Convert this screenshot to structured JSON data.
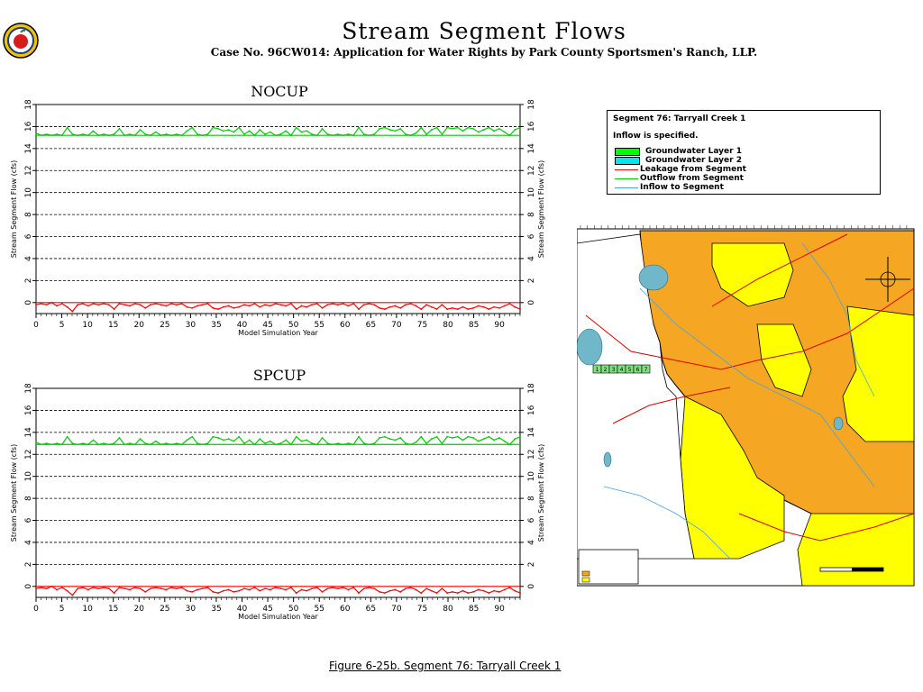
{
  "header": {
    "title": "Stream Segment Flows",
    "subtitle": "Case No. 96CW014: Application for Water Rights by Park County Sportsmen's Ranch, LLP."
  },
  "chart_data": [
    {
      "type": "line",
      "title": "NOCUP",
      "xlabel": "Model Simulation Year",
      "ylabel": "Stream Segment Flow (cfs)",
      "xlim": [
        0,
        94
      ],
      "ylim": [
        -1,
        18
      ],
      "x_ticks": [
        0,
        5,
        10,
        15,
        20,
        25,
        30,
        35,
        40,
        45,
        50,
        55,
        60,
        65,
        70,
        75,
        80,
        85,
        90
      ],
      "y_ticks": [
        0,
        2,
        4,
        6,
        8,
        10,
        12,
        14,
        16,
        18
      ],
      "grid": "horizontal dashed",
      "series": [
        {
          "name": "Outflow from Segment",
          "color": "#00cc00",
          "base": 15.2,
          "values": [
            15.4,
            15.2,
            15.3,
            15.2,
            15.3,
            15.2,
            15.9,
            15.3,
            15.2,
            15.3,
            15.2,
            15.6,
            15.2,
            15.3,
            15.2,
            15.3,
            15.8,
            15.2,
            15.3,
            15.2,
            15.7,
            15.3,
            15.2,
            15.5,
            15.2,
            15.3,
            15.2,
            15.3,
            15.2,
            15.6,
            15.9,
            15.3,
            15.2,
            15.3,
            15.9,
            15.8,
            15.6,
            15.7,
            15.5,
            15.9,
            15.3,
            15.6,
            15.2,
            15.7,
            15.3,
            15.5,
            15.2,
            15.3,
            15.6,
            15.2,
            15.9,
            15.5,
            15.6,
            15.3,
            15.2,
            15.8,
            15.3,
            15.2,
            15.3,
            15.2,
            15.3,
            15.2,
            15.9,
            15.3,
            15.2,
            15.3,
            15.8,
            15.9,
            15.7,
            15.6,
            15.8,
            15.3,
            15.2,
            15.4,
            15.9,
            15.3,
            15.7,
            15.9,
            15.3,
            15.9,
            15.8,
            15.9,
            15.6,
            15.9,
            15.8,
            15.5,
            15.7,
            15.9,
            15.6,
            15.8,
            15.5,
            15.2,
            15.7,
            15.9
          ]
        },
        {
          "name": "Leakage from Segment",
          "color": "#ff0000",
          "base": 0.0,
          "values": [
            -0.2,
            -0.1,
            -0.2,
            0.0,
            -0.3,
            -0.1,
            -0.4,
            -0.8,
            -0.2,
            -0.1,
            -0.3,
            -0.1,
            -0.2,
            -0.1,
            -0.2,
            -0.6,
            -0.1,
            -0.2,
            -0.3,
            -0.1,
            -0.2,
            -0.5,
            -0.2,
            -0.1,
            -0.2,
            -0.3,
            -0.1,
            -0.2,
            -0.1,
            -0.4,
            -0.5,
            -0.3,
            -0.2,
            -0.1,
            -0.5,
            -0.6,
            -0.4,
            -0.3,
            -0.5,
            -0.4,
            -0.2,
            -0.3,
            -0.1,
            -0.4,
            -0.2,
            -0.3,
            -0.1,
            -0.2,
            -0.3,
            -0.1,
            -0.6,
            -0.3,
            -0.4,
            -0.2,
            -0.1,
            -0.5,
            -0.2,
            -0.1,
            -0.2,
            -0.1,
            -0.3,
            -0.1,
            -0.6,
            -0.2,
            -0.1,
            -0.2,
            -0.5,
            -0.6,
            -0.4,
            -0.3,
            -0.5,
            -0.2,
            -0.1,
            -0.3,
            -0.6,
            -0.2,
            -0.4,
            -0.6,
            -0.2,
            -0.6,
            -0.5,
            -0.6,
            -0.4,
            -0.6,
            -0.5,
            -0.3,
            -0.4,
            -0.6,
            -0.4,
            -0.5,
            -0.3,
            -0.1,
            -0.4,
            -0.6
          ]
        }
      ]
    },
    {
      "type": "line",
      "title": "SPCUP",
      "xlabel": "Model Simulation Year",
      "ylabel": "Stream Segment Flow (cfs)",
      "xlim": [
        0,
        94
      ],
      "ylim": [
        -1,
        18
      ],
      "x_ticks": [
        0,
        5,
        10,
        15,
        20,
        25,
        30,
        35,
        40,
        45,
        50,
        55,
        60,
        65,
        70,
        75,
        80,
        85,
        90
      ],
      "y_ticks": [
        0,
        2,
        4,
        6,
        8,
        10,
        12,
        14,
        16,
        18
      ],
      "grid": "horizontal dashed",
      "series": [
        {
          "name": "Outflow from Segment",
          "color": "#00cc00",
          "base": 12.9,
          "values": [
            13.1,
            12.9,
            13.0,
            12.9,
            13.0,
            12.9,
            13.6,
            13.0,
            12.9,
            13.0,
            12.9,
            13.3,
            12.9,
            13.0,
            12.9,
            13.0,
            13.5,
            12.9,
            13.0,
            12.9,
            13.4,
            13.0,
            12.9,
            13.2,
            12.9,
            13.0,
            12.9,
            13.0,
            12.9,
            13.3,
            13.6,
            13.0,
            12.9,
            13.0,
            13.6,
            13.5,
            13.3,
            13.4,
            13.2,
            13.6,
            13.0,
            13.3,
            12.9,
            13.4,
            13.0,
            13.2,
            12.9,
            13.0,
            13.3,
            12.9,
            13.6,
            13.2,
            13.3,
            13.0,
            12.9,
            13.5,
            13.0,
            12.9,
            13.0,
            12.9,
            13.0,
            12.9,
            13.6,
            13.0,
            12.9,
            13.0,
            13.5,
            13.6,
            13.4,
            13.3,
            13.5,
            13.0,
            12.9,
            13.1,
            13.6,
            13.0,
            13.4,
            13.6,
            13.0,
            13.6,
            13.5,
            13.6,
            13.3,
            13.6,
            13.5,
            13.2,
            13.4,
            13.6,
            13.3,
            13.5,
            13.2,
            12.9,
            13.4,
            13.6
          ]
        },
        {
          "name": "Leakage from Segment",
          "color": "#ff0000",
          "base": 0.0,
          "values": [
            -0.2,
            -0.1,
            -0.2,
            0.0,
            -0.3,
            -0.1,
            -0.4,
            -0.8,
            -0.2,
            -0.1,
            -0.3,
            -0.1,
            -0.2,
            -0.1,
            -0.2,
            -0.6,
            -0.1,
            -0.2,
            -0.3,
            -0.1,
            -0.2,
            -0.5,
            -0.2,
            -0.1,
            -0.2,
            -0.3,
            -0.1,
            -0.2,
            -0.1,
            -0.4,
            -0.5,
            -0.3,
            -0.2,
            -0.1,
            -0.5,
            -0.6,
            -0.4,
            -0.3,
            -0.5,
            -0.4,
            -0.2,
            -0.3,
            -0.1,
            -0.4,
            -0.2,
            -0.3,
            -0.1,
            -0.2,
            -0.3,
            -0.1,
            -0.6,
            -0.3,
            -0.4,
            -0.2,
            -0.1,
            -0.5,
            -0.2,
            -0.1,
            -0.2,
            -0.1,
            -0.3,
            -0.1,
            -0.6,
            -0.2,
            -0.1,
            -0.2,
            -0.5,
            -0.6,
            -0.4,
            -0.3,
            -0.5,
            -0.2,
            -0.1,
            -0.3,
            -0.6,
            -0.2,
            -0.4,
            -0.6,
            -0.2,
            -0.6,
            -0.5,
            -0.6,
            -0.4,
            -0.6,
            -0.5,
            -0.3,
            -0.4,
            -0.6,
            -0.4,
            -0.5,
            -0.3,
            -0.1,
            -0.4,
            -0.6
          ]
        }
      ]
    }
  ],
  "legend": {
    "segment": "Segment 76: Tarryall Creek 1",
    "inflow_note": "Inflow is specified.",
    "items": [
      {
        "label": "Groundwater Layer 1",
        "kind": "box",
        "color": "#00ff00"
      },
      {
        "label": "Groundwater Layer 2",
        "kind": "box",
        "color": "#00e5ee"
      },
      {
        "label": "Leakage from Segment",
        "kind": "line",
        "color": "#ff0000"
      },
      {
        "label": "Outflow from Segment",
        "kind": "line",
        "color": "#00cc00"
      },
      {
        "label": "Inflow to Segment",
        "kind": "line",
        "color": "#4aa3df"
      }
    ]
  },
  "map": {
    "colors": {
      "layer1": "#f5a623",
      "layer2": "#ffff00",
      "water": "#6fb7c9",
      "river": "#e00000",
      "stream": "#4aa3df"
    },
    "segment_numbers": [
      "1",
      "2",
      "3",
      "4",
      "5",
      "6",
      "7"
    ]
  },
  "caption": "Figure 6-25b.  Segment 76: Tarryall Creek 1"
}
